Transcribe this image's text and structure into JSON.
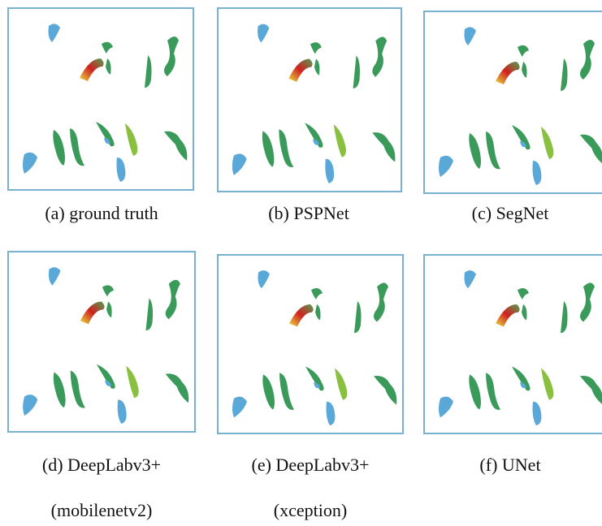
{
  "panels": [
    {
      "caption": [
        "(a) ground truth"
      ]
    },
    {
      "caption": [
        "(b) PSPNet"
      ]
    },
    {
      "caption": [
        "(c) SegNet"
      ]
    },
    {
      "caption": [
        "(d) DeepLabv3+",
        "(mobilenetv2)"
      ]
    },
    {
      "caption": [
        "(e) DeepLabv3+",
        "(xception)"
      ]
    },
    {
      "caption": [
        "(f) UNet"
      ]
    }
  ]
}
